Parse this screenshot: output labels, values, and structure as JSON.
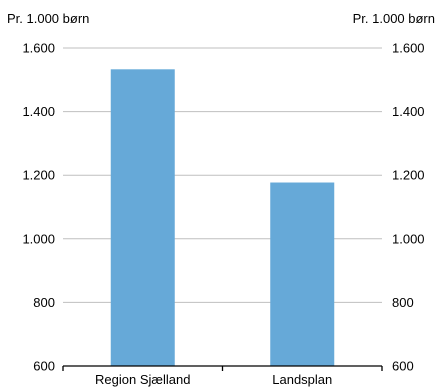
{
  "chart_data": {
    "type": "bar",
    "categories": [
      "Region Sjælland",
      "Landsplan"
    ],
    "values": [
      1533,
      1177
    ],
    "ylim": [
      600,
      1600
    ],
    "yticks": [
      "600",
      "800",
      "1.000",
      "1.200",
      "1.400",
      "1.600"
    ],
    "y_unit_left": "Pr. 1.000 børn",
    "y_unit_right": "Pr. 1.000 børn",
    "bar_color": "#66a9d8",
    "grid": true,
    "secondary_axis": true
  }
}
